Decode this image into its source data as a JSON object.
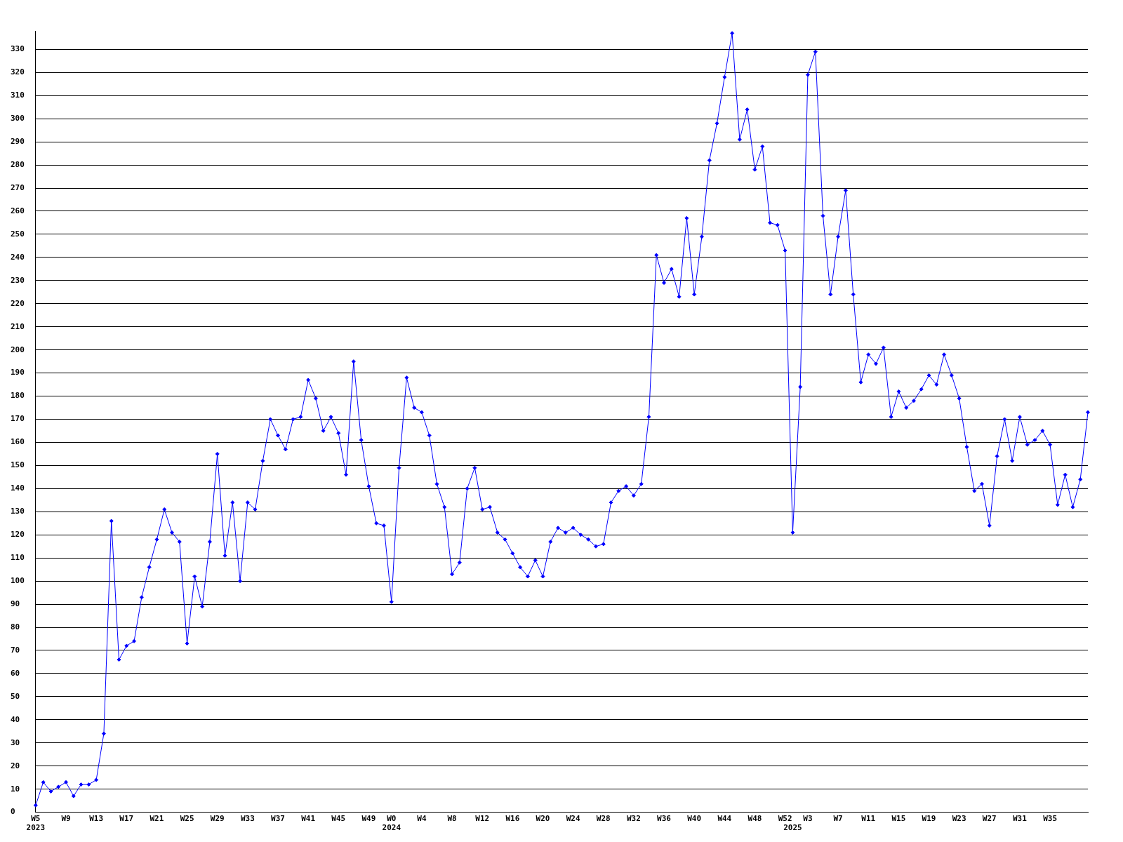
{
  "chart_data": {
    "type": "line",
    "categories": [
      "W5\n2023",
      null,
      null,
      null,
      "W9",
      null,
      null,
      null,
      "W13",
      null,
      null,
      null,
      "W17",
      null,
      null,
      null,
      "W21",
      null,
      null,
      null,
      "W25",
      null,
      null,
      null,
      "W29",
      null,
      null,
      null,
      "W33",
      null,
      null,
      null,
      "W37",
      null,
      null,
      null,
      "W41",
      null,
      null,
      null,
      "W45",
      null,
      null,
      null,
      "W49",
      null,
      null,
      "W0\n2024",
      null,
      null,
      null,
      "W4",
      null,
      null,
      null,
      "W8",
      null,
      null,
      null,
      "W12",
      null,
      null,
      null,
      "W16",
      null,
      null,
      null,
      "W20",
      null,
      null,
      null,
      "W24",
      null,
      null,
      null,
      "W28",
      null,
      null,
      null,
      "W32",
      null,
      null,
      null,
      "W36",
      null,
      null,
      null,
      "W40",
      null,
      null,
      null,
      "W44",
      null,
      null,
      null,
      "W48",
      null,
      null,
      null,
      "W52",
      "\n2025",
      null,
      "W3",
      null,
      null,
      null,
      "W7",
      null,
      null,
      null,
      "W11",
      null,
      null,
      null,
      "W15",
      null,
      null,
      null,
      "W19",
      null,
      null,
      null,
      "W23",
      null,
      null,
      null,
      "W27",
      null,
      null,
      null,
      "W31",
      null,
      null,
      null,
      "W35",
      null,
      null,
      null,
      null,
      null
    ],
    "series": [
      {
        "color": "#0000ff",
        "values": [
          3,
          13,
          9,
          11,
          13,
          7,
          12,
          12,
          14,
          34,
          126,
          66,
          72,
          74,
          93,
          106,
          118,
          131,
          121,
          117,
          73,
          102,
          89,
          117,
          155,
          111,
          134,
          100,
          134,
          131,
          152,
          170,
          163,
          157,
          170,
          171,
          187,
          179,
          165,
          171,
          164,
          146,
          195,
          161,
          141,
          125,
          124,
          91,
          149,
          188,
          175,
          173,
          163,
          142,
          132,
          103,
          108,
          140,
          149,
          131,
          132,
          121,
          118,
          112,
          106,
          102,
          109,
          102,
          117,
          123,
          121,
          123,
          120,
          118,
          115,
          116,
          134,
          139,
          141,
          137,
          142,
          171,
          241,
          229,
          235,
          223,
          257,
          224,
          249,
          282,
          298,
          318,
          337,
          291,
          304,
          278,
          288,
          255,
          254,
          243,
          121,
          184,
          319,
          329,
          258,
          224,
          249,
          269,
          224,
          186,
          198,
          194,
          201,
          171,
          182,
          175,
          178,
          183,
          189,
          185,
          198,
          189,
          179,
          158,
          139,
          142,
          124,
          154,
          170,
          152,
          171,
          159,
          161,
          165,
          159,
          133,
          146,
          132,
          144,
          173
        ]
      }
    ],
    "ylim": [
      0,
      338
    ],
    "yticks": [
      0,
      10,
      20,
      30,
      40,
      50,
      60,
      70,
      80,
      90,
      100,
      110,
      120,
      130,
      140,
      150,
      160,
      170,
      180,
      190,
      200,
      210,
      220,
      230,
      240,
      250,
      260,
      270,
      280,
      290,
      300,
      310,
      320,
      330
    ],
    "grid": "y",
    "legend": false,
    "marker": "diamond",
    "line_style": "solid"
  }
}
